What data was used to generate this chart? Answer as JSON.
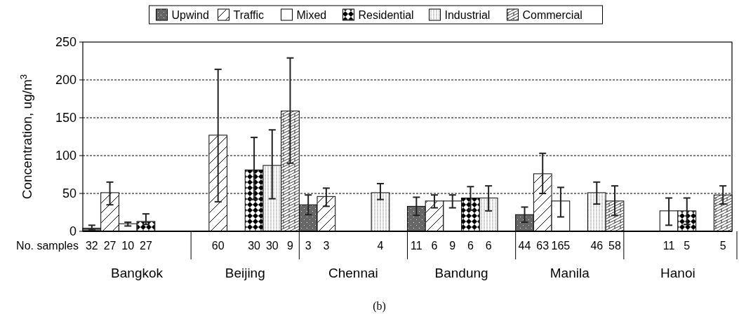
{
  "chart_data": {
    "type": "bar",
    "categories": [
      "Bangkok",
      "Beijing",
      "Chennai",
      "Bandung",
      "Manila",
      "Hanoi"
    ],
    "ylabel": "Concentration, ug/m$^{3}$",
    "ylim": [
      0,
      250
    ],
    "yticks": [
      0,
      50,
      100,
      150,
      200,
      250
    ],
    "grid": "y",
    "legend": "top",
    "series": [
      {
        "name": "Upwind",
        "color": "#666666",
        "values": [
          4,
          null,
          35,
          33,
          22,
          null
        ],
        "errors": [
          [
            2,
            8
          ],
          null,
          13,
          12,
          10,
          null
        ]
      },
      {
        "name": "Traffic",
        "color": "#ffffff",
        "values": [
          51,
          127,
          46,
          40,
          76,
          null
        ],
        "errors": [
          [
            35,
            65
          ],
          [
            39,
            214
          ],
          [
            33,
            57
          ],
          [
            31,
            48
          ],
          [
            50,
            103
          ],
          null
        ]
      },
      {
        "name": "Mixed",
        "color": "#ffffff",
        "values": [
          10,
          null,
          null,
          40,
          40,
          27
        ],
        "errors": [
          [
            7,
            12
          ],
          null,
          null,
          [
            31,
            48
          ],
          [
            19,
            58
          ],
          [
            8,
            44
          ]
        ]
      },
      {
        "name": "Residential",
        "color": "#ffffff",
        "values": [
          13,
          81,
          null,
          44,
          null,
          27
        ],
        "errors": [
          [
            9,
            23
          ],
          [
            42,
            124
          ],
          null,
          [
            28,
            59
          ],
          null,
          [
            9,
            44
          ]
        ]
      },
      {
        "name": "Industrial",
        "color": "#ffffff",
        "values": [
          null,
          87,
          51,
          44,
          51,
          null
        ],
        "errors": [
          null,
          [
            43,
            134
          ],
          [
            42,
            63
          ],
          [
            27,
            60
          ],
          [
            36,
            65
          ],
          null
        ]
      },
      {
        "name": "Commercial",
        "color": "#ffffff",
        "values": [
          null,
          159,
          null,
          null,
          40,
          48
        ],
        "errors": [
          null,
          [
            90,
            229
          ],
          null,
          null,
          [
            21,
            60
          ],
          [
            36,
            60
          ]
        ]
      }
    ],
    "annotations": [
      "No. samples",
      "(b)",
      "32",
      "27",
      "10",
      "27",
      "60",
      "30",
      "30",
      "9",
      "3",
      "3",
      "4",
      "11",
      "6",
      "9",
      "6",
      "6",
      "44",
      "63",
      "165",
      "46",
      "58",
      "11",
      "5",
      "5"
    ]
  }
}
